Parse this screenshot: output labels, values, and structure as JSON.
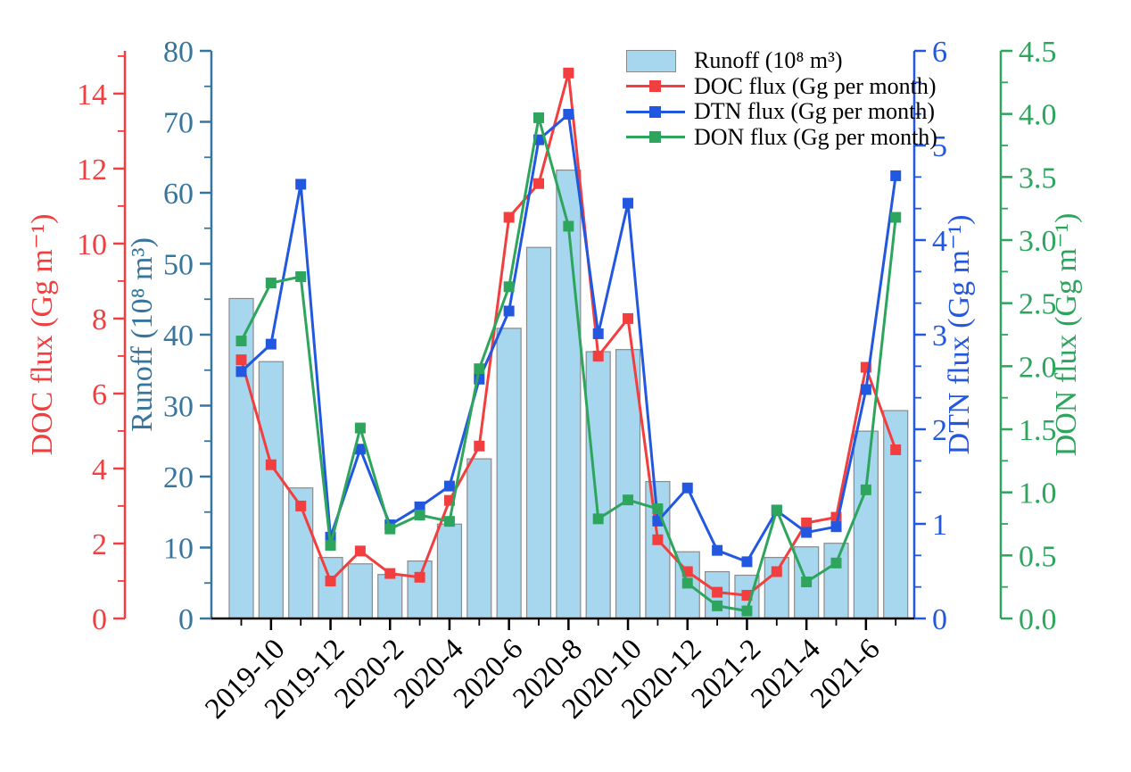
{
  "chart_data": {
    "type": "bar+line",
    "title": "",
    "categories": [
      "2019-09",
      "2019-10",
      "2019-11",
      "2019-12",
      "2020-01",
      "2020-02",
      "2020-03",
      "2020-04",
      "2020-05",
      "2020-06",
      "2020-07",
      "2020-08",
      "2020-09",
      "2020-10",
      "2020-11",
      "2020-12",
      "2021-01",
      "2021-02",
      "2021-03",
      "2021-04",
      "2021-05",
      "2021-06",
      "2021-07"
    ],
    "x_axis": {
      "tick_labels": [
        "2019-10",
        "2019-12",
        "2020-2",
        "2020-4",
        "2020-6",
        "2020-8",
        "2020-10",
        "2020-12",
        "2021-2",
        "2021-4",
        "2021-6"
      ],
      "color": "#000000",
      "label_rotation_deg": 45
    },
    "series": [
      {
        "name": "Runoff (10⁸ m³)",
        "type": "bar",
        "axis": "runoff",
        "fill": "#a6d7ee",
        "edge": "#8a8a8a",
        "values": [
          45.1,
          36.2,
          18.4,
          8.6,
          7.7,
          6.2,
          8.1,
          13.3,
          22.5,
          40.9,
          52.3,
          63.2,
          37.6,
          37.9,
          19.3,
          9.4,
          6.6,
          6.1,
          8.6,
          10.1,
          10.6,
          26.4,
          29.3
        ]
      },
      {
        "name": "DOC flux (Gg per month)",
        "type": "line",
        "axis": "doc",
        "color": "#f23e3e",
        "values": [
          6.9,
          4.1,
          3.0,
          1.0,
          1.8,
          1.2,
          1.1,
          3.15,
          4.6,
          10.7,
          11.6,
          14.55,
          7.0,
          8.0,
          2.1,
          1.25,
          0.7,
          0.62,
          1.25,
          2.55,
          2.7,
          6.7,
          4.5
        ]
      },
      {
        "name": "DTN flux (Gg per month)",
        "type": "line",
        "axis": "dtn",
        "color": "#2257e0",
        "values": [
          2.61,
          2.9,
          4.59,
          0.86,
          1.79,
          0.99,
          1.18,
          1.4,
          2.53,
          3.25,
          5.06,
          5.33,
          3.01,
          4.39,
          1.03,
          1.38,
          0.72,
          0.6,
          1.14,
          0.91,
          0.97,
          2.42,
          4.68
        ]
      },
      {
        "name": "DON flux (Gg per month)",
        "type": "line",
        "axis": "don",
        "color": "#2ea55c",
        "values": [
          2.2,
          2.66,
          2.71,
          0.58,
          1.51,
          0.71,
          0.82,
          0.77,
          1.98,
          2.63,
          3.97,
          3.11,
          0.79,
          0.94,
          0.87,
          0.28,
          0.1,
          0.06,
          0.86,
          0.29,
          0.44,
          1.02,
          3.18
        ]
      }
    ],
    "axes": {
      "doc": {
        "title": "DOC flux (Gg m⁻¹)",
        "color": "#f23e3e",
        "min": 0,
        "max": 15.14,
        "tick_values": [
          0,
          2,
          4,
          6,
          8,
          10,
          12,
          14
        ],
        "tick_labels": [
          "0",
          "2",
          "4",
          "6",
          "8",
          "10",
          "12",
          "14"
        ],
        "minor_step": 1
      },
      "runoff": {
        "title": "Runoff (10⁸ m³)",
        "color": "#36759d",
        "min": 0,
        "max": 80,
        "tick_values": [
          0,
          10,
          20,
          30,
          40,
          50,
          60,
          70,
          80
        ],
        "tick_labels": [
          "0",
          "10",
          "20",
          "30",
          "40",
          "50",
          "60",
          "70",
          "80"
        ],
        "minor_step": 5
      },
      "dtn": {
        "title": "DTN flux (Gg m⁻¹)",
        "color": "#2257e0",
        "min": 0,
        "max": 6,
        "tick_values": [
          0,
          1,
          2,
          3,
          4,
          5,
          6
        ],
        "tick_labels": [
          "0",
          "1",
          "2",
          "3",
          "4",
          "5",
          "6"
        ],
        "minor_step": 0.333333
      },
      "don": {
        "title": "DON flux (Gg m⁻¹)",
        "color": "#2ea55c",
        "min": 0,
        "max": 4.5,
        "tick_values": [
          0,
          0.5,
          1,
          1.5,
          2,
          2.5,
          3,
          3.5,
          4,
          4.5
        ],
        "tick_labels": [
          "0.0",
          "0.5",
          "1.0",
          "1.5",
          "2.0",
          "2.5",
          "3.0",
          "3.5",
          "4.0",
          "4.5"
        ],
        "minor_step": 0.25
      }
    },
    "legend": {
      "position": "top-right-inside",
      "entries": [
        "Runoff (10⁸ m³)",
        "DOC flux (Gg per month)",
        "DTN flux (Gg per month)",
        "DON flux (Gg per month)"
      ]
    },
    "grid": "off"
  }
}
